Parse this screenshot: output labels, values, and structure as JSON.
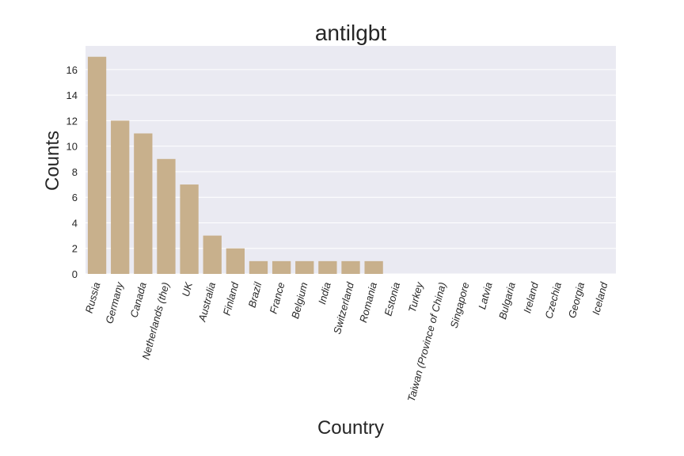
{
  "chart_data": {
    "type": "bar",
    "title": "antilgbt",
    "xlabel": "Country",
    "ylabel": "Counts",
    "categories": [
      "Russia",
      "Germany",
      "Canada",
      "Netherlands (the)",
      "UK",
      "Australia",
      "Finland",
      "Brazil",
      "France",
      "Belgium",
      "India",
      "Switzerland",
      "Romania",
      "Estonia",
      "Turkey",
      "Taiwan (Province of China)",
      "Singapore",
      "Latvia",
      "Bulgaria",
      "Ireland",
      "Czechia",
      "Georgia",
      "Iceland"
    ],
    "values": [
      17,
      12,
      11,
      9,
      7,
      3,
      2,
      1,
      1,
      1,
      1,
      1,
      1,
      0,
      0,
      0,
      0,
      0,
      0,
      0,
      0,
      0,
      0
    ],
    "yticks": [
      0,
      2,
      4,
      6,
      8,
      10,
      12,
      14,
      16
    ],
    "ylim": [
      0,
      17.85
    ],
    "grid": true,
    "bar_color": "#c8b08c",
    "background_color": "#eaeaf2",
    "grid_color": "#ffffff"
  }
}
